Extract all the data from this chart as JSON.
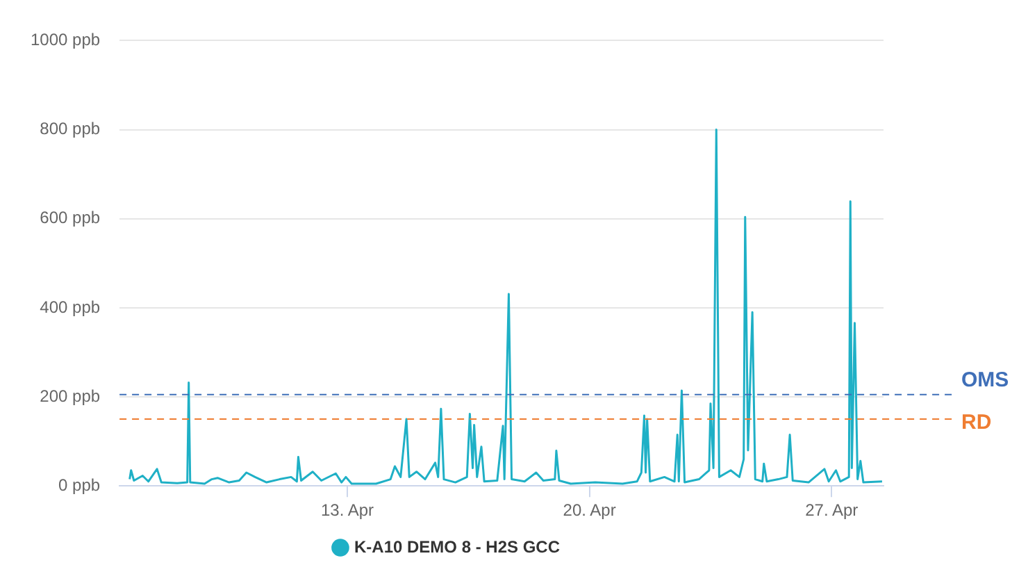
{
  "chart_data": {
    "type": "line",
    "x": [
      "--04-06T17:00",
      "--04-06T18:00",
      "--04-06T20:00",
      "--04-07T02:00",
      "--04-07T06:00",
      "--04-07T12:00",
      "--04-07T15:00",
      "--04-08T02:00",
      "--04-08T09:00",
      "--04-08T10:00",
      "--04-08T11:00",
      "--04-08T21:00",
      "--04-09T02:00",
      "--04-09T06:00",
      "--04-09T14:00",
      "--04-09T21:00",
      "--04-10T02:00",
      "--04-10T08:00",
      "--04-10T16:00",
      "--04-11T01:00",
      "--04-11T09:00",
      "--04-11T13:00",
      "--04-11T14:00",
      "--04-11T16:00",
      "--04-12T00:00",
      "--04-12T06:00",
      "--04-12T16:00",
      "--04-12T20:00",
      "--04-12T23:00",
      "--04-13T03:00",
      "--04-13T20:00",
      "--04-14T06:00",
      "--04-14T09:00",
      "--04-14T13:00",
      "--04-14T17:00",
      "--04-14T19:00",
      "--04-15T00:00",
      "--04-15T06:00",
      "--04-15T13:00",
      "--04-15T15:00",
      "--04-15T17:00",
      "--04-15T19:00",
      "--04-16T03:00",
      "--04-16T11:00",
      "--04-16T13:00",
      "--04-16T15:00",
      "--04-16T16:00",
      "--04-16T18:00",
      "--04-16T21:00",
      "--04-16T23:00",
      "--04-17T08:00",
      "--04-17T12:00",
      "--04-17T13:00",
      "--04-17T16:00",
      "--04-17T18:00",
      "--04-18T03:00",
      "--04-18T11:00",
      "--04-18T16:00",
      "--04-19T00:00",
      "--04-19T01:00",
      "--04-19T03:00",
      "--04-19T11:00",
      "--04-20T04:00",
      "--04-20T23:00",
      "--04-21T09:00",
      "--04-21T12:00",
      "--04-21T14:00",
      "--04-21T15:00",
      "--04-21T16:00",
      "--04-21T18:00",
      "--04-22T04:00",
      "--04-22T11:00",
      "--04-22T13:00",
      "--04-22T14:00",
      "--04-22T16:00",
      "--04-22T18:00",
      "--04-23T04:00",
      "--04-23T11:00",
      "--04-23T12:00",
      "--04-23T14:00",
      "--04-23T16:00",
      "--04-23T18:00",
      "--04-24T02:00",
      "--04-24T08:00",
      "--04-24T11:00",
      "--04-24T12:00",
      "--04-24T14:00",
      "--04-24T17:00",
      "--04-24T19:00",
      "--04-25T00:00",
      "--04-25T01:00",
      "--04-25T03:00",
      "--04-25T11:00",
      "--04-25T17:00",
      "--04-25T19:00",
      "--04-25T21:00",
      "--04-26T08:00",
      "--04-26T19:00",
      "--04-26T22:00",
      "--04-27T03:00",
      "--04-27T06:00",
      "--04-27T12:00",
      "--04-27T13:00",
      "--04-27T14:00",
      "--04-27T16:00",
      "--04-27T18:00",
      "--04-27T20:00",
      "--04-27T22:00",
      "--04-28T11:00"
    ],
    "series": [
      {
        "name": "K-A10 DEMO 8 - H2S GCC",
        "color": "#1fb0c6",
        "values": [
          15,
          35,
          12,
          23,
          10,
          38,
          8,
          6,
          8,
          232,
          8,
          5,
          15,
          18,
          8,
          12,
          30,
          20,
          8,
          15,
          20,
          10,
          65,
          12,
          32,
          12,
          28,
          8,
          20,
          5,
          5,
          15,
          44,
          20,
          150,
          20,
          32,
          15,
          52,
          20,
          173,
          15,
          8,
          20,
          162,
          40,
          137,
          20,
          88,
          10,
          12,
          135,
          15,
          431,
          15,
          10,
          30,
          12,
          15,
          79,
          12,
          5,
          8,
          5,
          10,
          30,
          158,
          30,
          150,
          10,
          20,
          10,
          115,
          10,
          214,
          8,
          15,
          35,
          185,
          40,
          800,
          20,
          35,
          20,
          60,
          604,
          80,
          390,
          15,
          10,
          50,
          10,
          15,
          20,
          115,
          12,
          8,
          38,
          10,
          35,
          10,
          20,
          639,
          40,
          366,
          15,
          56,
          8,
          10
        ]
      }
    ],
    "xlim": [
      "--04-06T10:00",
      "--04-28T12:00"
    ],
    "xticks": [
      {
        "value": "--04-13",
        "label": "13. Apr"
      },
      {
        "value": "--04-20",
        "label": "20. Apr"
      },
      {
        "value": "--04-27",
        "label": "27. Apr"
      }
    ],
    "ylim": [
      0,
      1000
    ],
    "yticks": [
      {
        "value": 0,
        "label": "0 ppb"
      },
      {
        "value": 200,
        "label": "200 ppb"
      },
      {
        "value": 400,
        "label": "400 ppb"
      },
      {
        "value": 600,
        "label": "600 ppb"
      },
      {
        "value": 800,
        "label": "800 ppb"
      },
      {
        "value": 1000,
        "label": "1000 ppb"
      }
    ],
    "ref_lines": [
      {
        "axis": "y",
        "value": 205,
        "label": "OMS",
        "color": "#3f6fb8",
        "line_style": "dashed"
      },
      {
        "axis": "y",
        "value": 150,
        "label": "RD",
        "color": "#ef7d32",
        "line_style": "dashed"
      }
    ],
    "grid": "y",
    "legend": "bottom",
    "marker": "none",
    "line_style": "solid"
  }
}
